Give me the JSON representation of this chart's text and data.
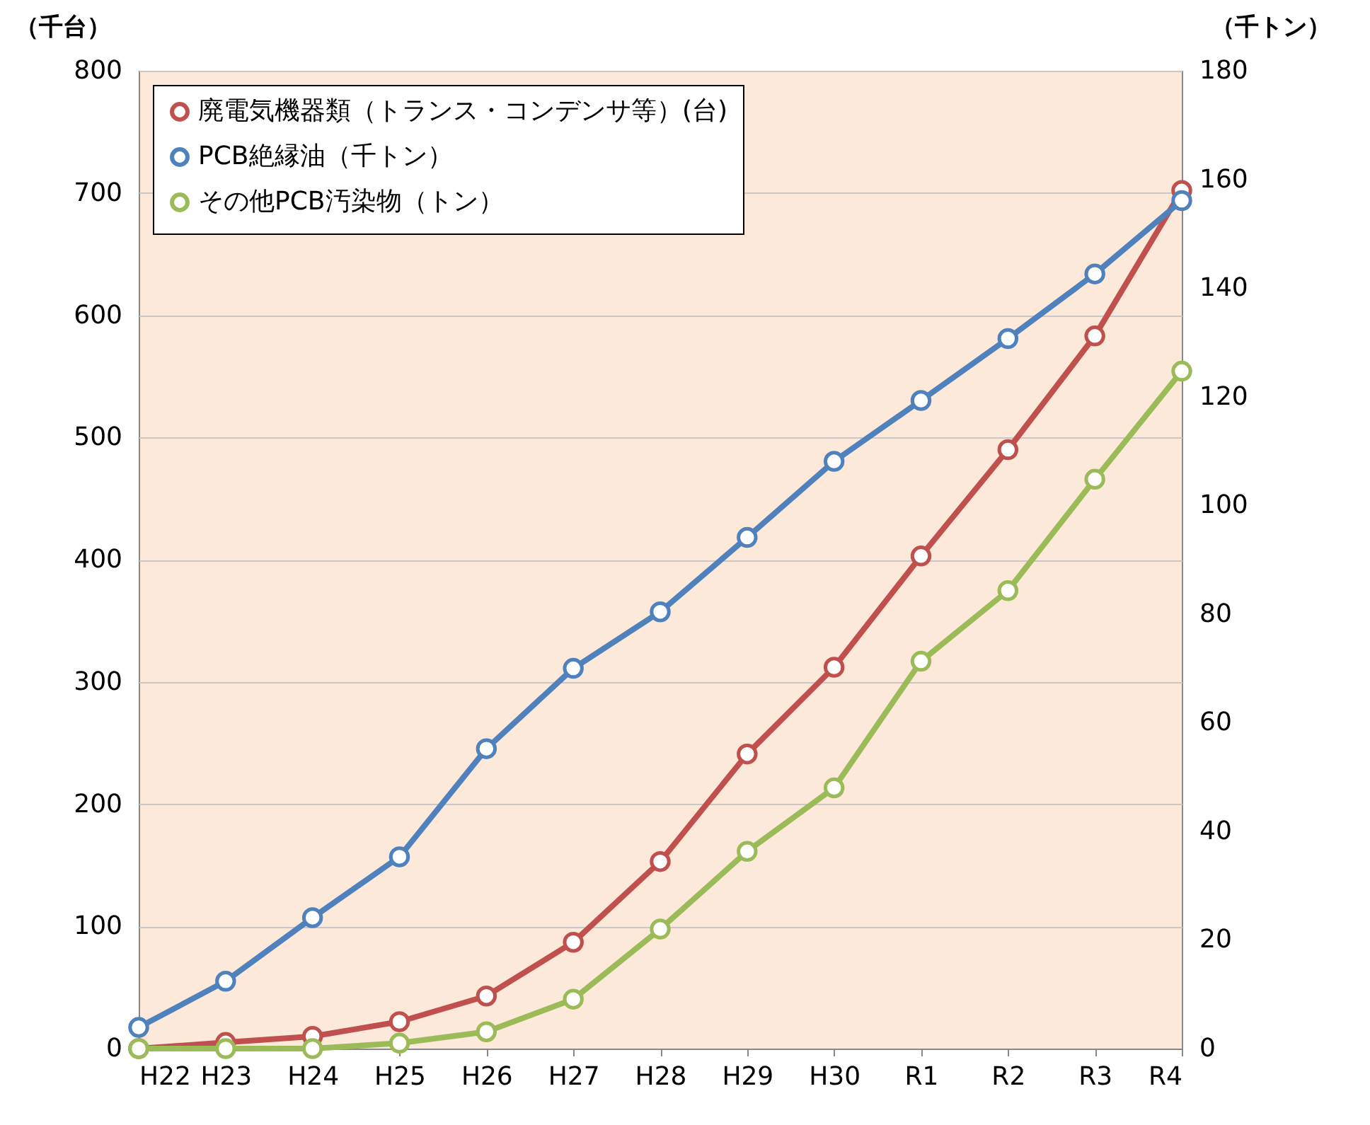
{
  "chart_data": {
    "type": "line",
    "ylabel": "（千台）",
    "y2label": "（千トン）",
    "categories": [
      "H22",
      "H23",
      "H24",
      "H25",
      "H26",
      "H27",
      "H28",
      "H29",
      "H30",
      "R1",
      "R2",
      "R3",
      "R4"
    ],
    "series": [
      {
        "name": "廃電気機器類（トランス・コンデンサ等）(台)",
        "color": "#c0504d",
        "values": [
          0,
          5,
          10,
          22,
          43,
          87,
          153,
          241,
          312,
          403,
          490,
          583,
          702
        ]
      },
      {
        "name": "PCB絶縁油（千トン）",
        "color": "#4f81bd",
        "axis": "y2",
        "values": [
          3.9,
          12.4,
          24.1,
          35.3,
          55.2,
          70,
          80.4,
          94.1,
          108.1,
          119.3,
          130.7,
          142.6,
          156.1
        ]
      },
      {
        "name": "その他PCB汚染物（トン）",
        "color": "#9bbb59",
        "axis": "y2",
        "values": [
          0,
          0,
          0,
          1,
          3.1,
          9.1,
          22,
          36.3,
          48,
          71.3,
          84.3,
          104.8,
          124.7
        ]
      }
    ],
    "ylim": [
      0,
      800
    ],
    "yticks": [
      0,
      100,
      200,
      300,
      400,
      500,
      600,
      700,
      800
    ],
    "y2lim": [
      0,
      180
    ],
    "y2ticks": [
      0,
      20,
      40,
      60,
      80,
      100,
      120,
      140,
      160,
      180
    ],
    "grid": "y",
    "legend": "top left",
    "marker": "circle",
    "line_style": "solid"
  }
}
